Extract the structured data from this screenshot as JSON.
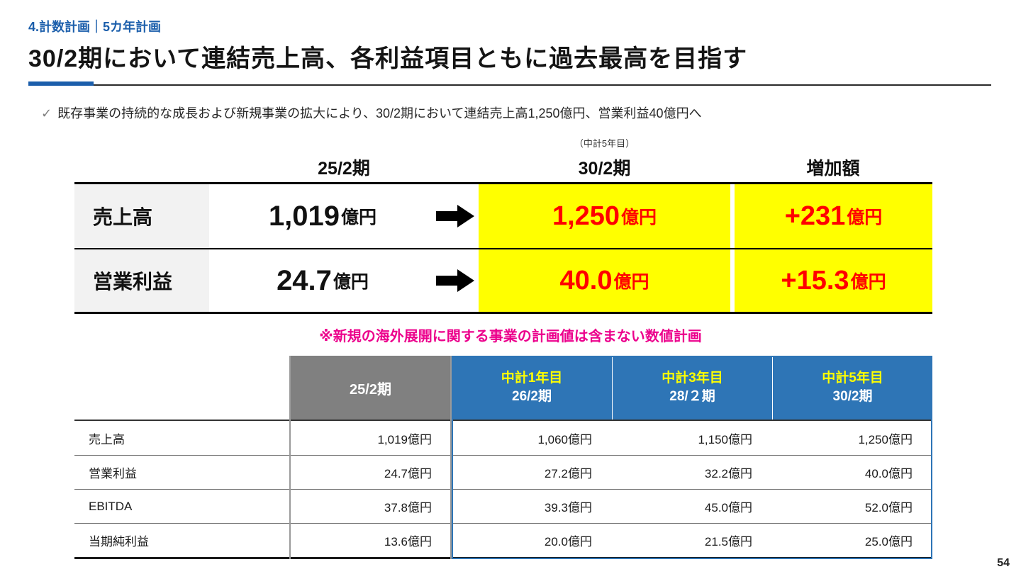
{
  "slide": {
    "section_label": "4.計数計画｜5カ年計画",
    "title": "30/2期において連結売上高、各利益項目ともに過去最高を目指す",
    "bullet_check": "✓",
    "bullet_text": "既存事業の持続的な成長および新規事業の拡大により、30/2期において連結売上高1,250億円、営業利益40億円へ",
    "page_number": "54"
  },
  "summary": {
    "note": "（中計5年目）",
    "headers": [
      "25/2期",
      "30/2期",
      "増加額"
    ],
    "footnote": "※新規の海外展開に関する事業の計画値は含まない数値計画",
    "rows": [
      {
        "label": "売上高",
        "base_value": "1,019",
        "base_unit": "億円",
        "plan_value": "1,250",
        "plan_unit": "億円",
        "delta_value": "+231",
        "delta_unit": "億円"
      },
      {
        "label": "営業利益",
        "base_value": "24.7",
        "base_unit": "億円",
        "plan_value": "40.0",
        "plan_unit": "億円",
        "delta_value": "+15.3",
        "delta_unit": "億円"
      }
    ]
  },
  "detail": {
    "header_col1": "25/2期",
    "header_cols": [
      {
        "line1": "中計1年目",
        "line2": "26/2期"
      },
      {
        "line1": "中計3年目",
        "line2": "28/２期"
      },
      {
        "line1": "中計5年目",
        "line2": "30/2期"
      }
    ],
    "rows": [
      {
        "label": "売上高",
        "v1": "1,019億円",
        "v2": "1,060億円",
        "v3": "1,150億円",
        "v4": "1,250億円"
      },
      {
        "label": "営業利益",
        "v1": "24.7億円",
        "v2": "27.2億円",
        "v3": "32.2億円",
        "v4": "40.0億円"
      },
      {
        "label": "EBITDA",
        "v1": "37.8億円",
        "v2": "39.3億円",
        "v3": "45.0億円",
        "v4": "52.0億円"
      },
      {
        "label": "当期純利益",
        "v1": "13.6億円",
        "v2": "20.0億円",
        "v3": "21.5億円",
        "v4": "25.0億円"
      }
    ]
  },
  "colors": {
    "accent_blue": "#1b5eab",
    "header_blue": "#2e75b6",
    "highlight_yellow": "#ffff00",
    "value_red": "#ff0000",
    "note_magenta": "#ec008c",
    "gray_header": "#808080"
  }
}
